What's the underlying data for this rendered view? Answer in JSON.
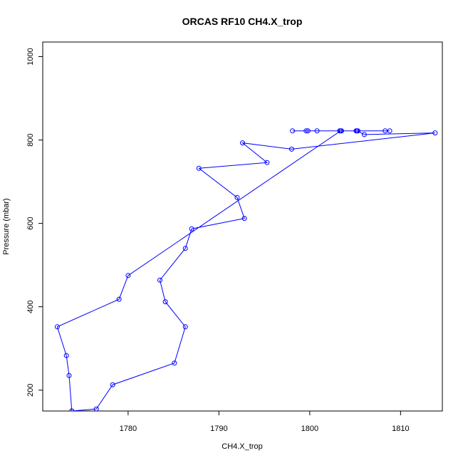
{
  "chart_data": {
    "type": "line",
    "title": "ORCAS RF10 CH4.X_trop",
    "xlabel": "CH4.X_trop",
    "ylabel": "Pressure (mbar)",
    "xlim": [
      1770.6,
      1814.6
    ],
    "ylim": [
      1035,
      150
    ],
    "y_reversed": true,
    "x_ticks": [
      1780,
      1790,
      1800,
      1810
    ],
    "x_tick_labels": [
      "1780",
      "1790",
      "1800",
      "1810"
    ],
    "y_ticks": [
      200,
      400,
      600,
      800,
      1000
    ],
    "y_tick_labels": [
      "200",
      "400",
      "600",
      "800",
      "1000"
    ],
    "grid": false,
    "legend": "none",
    "series": [
      {
        "color": "#0000ff",
        "marker": "open-circle",
        "points": [
          {
            "x": 1773.8,
            "y": 150
          },
          {
            "x": 1776.5,
            "y": 155
          },
          {
            "x": 1778.3,
            "y": 213
          },
          {
            "x": 1785.1,
            "y": 265
          },
          {
            "x": 1786.3,
            "y": 352
          },
          {
            "x": 1784.1,
            "y": 412
          },
          {
            "x": 1783.5,
            "y": 464
          },
          {
            "x": 1786.3,
            "y": 540
          },
          {
            "x": 1787.0,
            "y": 587
          },
          {
            "x": 1792.8,
            "y": 612
          },
          {
            "x": 1792.0,
            "y": 662
          },
          {
            "x": 1787.8,
            "y": 732
          },
          {
            "x": 1795.3,
            "y": 746
          },
          {
            "x": 1792.6,
            "y": 793
          },
          {
            "x": 1798.0,
            "y": 778
          },
          {
            "x": 1813.8,
            "y": 817
          },
          {
            "x": 1806.0,
            "y": 813
          },
          {
            "x": 1805.2,
            "y": 822
          },
          {
            "x": 1808.3,
            "y": 822
          },
          {
            "x": 1808.8,
            "y": 822
          },
          {
            "x": 1805.3,
            "y": 822
          },
          {
            "x": 1803.5,
            "y": 822
          },
          {
            "x": 1803.3,
            "y": 822
          },
          {
            "x": 1800.8,
            "y": 822
          },
          {
            "x": 1799.8,
            "y": 822
          },
          {
            "x": 1799.6,
            "y": 822
          },
          {
            "x": 1798.1,
            "y": 822
          },
          {
            "x": 1805.1,
            "y": 822
          },
          {
            "x": 1803.4,
            "y": 822
          },
          {
            "x": 1780.0,
            "y": 475
          },
          {
            "x": 1779.0,
            "y": 418
          },
          {
            "x": 1772.2,
            "y": 352
          },
          {
            "x": 1773.2,
            "y": 283
          },
          {
            "x": 1773.5,
            "y": 235
          },
          {
            "x": 1773.8,
            "y": 150
          }
        ]
      }
    ]
  }
}
